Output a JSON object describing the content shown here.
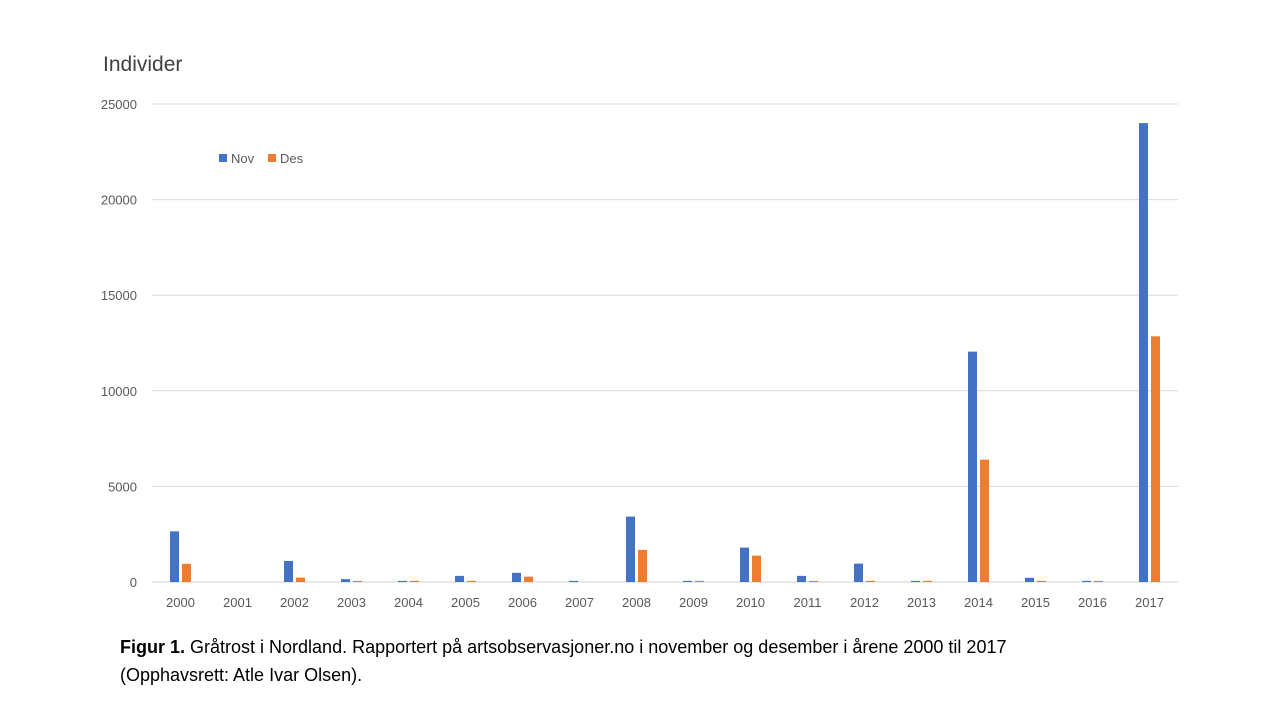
{
  "chart_data": {
    "type": "bar",
    "title": "",
    "ylabel": "Individider",
    "xlabel": "",
    "ylim": [
      0,
      25000
    ],
    "yticks": [
      0,
      5000,
      10000,
      15000,
      20000,
      25000
    ],
    "grid": true,
    "legend_position": "top-left",
    "categories": [
      "2000",
      "2001",
      "2002",
      "2003",
      "2004",
      "2005",
      "2006",
      "2007",
      "2008",
      "2009",
      "2010",
      "2011",
      "2012",
      "2013",
      "2014",
      "2015",
      "2016",
      "2017"
    ],
    "series": [
      {
        "name": "Nov",
        "color": "#4472C4",
        "values": [
          2650,
          0,
          1100,
          150,
          60,
          320,
          480,
          60,
          3420,
          60,
          1800,
          320,
          960,
          60,
          12050,
          220,
          60,
          24000
        ]
      },
      {
        "name": "Des",
        "color": "#ED7D31",
        "values": [
          950,
          0,
          230,
          60,
          60,
          60,
          280,
          0,
          1680,
          60,
          1380,
          60,
          60,
          60,
          6400,
          60,
          60,
          12850
        ]
      }
    ]
  },
  "caption": {
    "bold": "Figur 1.",
    "text": " Gråtrost i Nordland. Rapportert på artsobservasjoner.no i november og desember i årene 2000 til 2017 (Opphavsrett: Atle Ivar Olsen)."
  }
}
